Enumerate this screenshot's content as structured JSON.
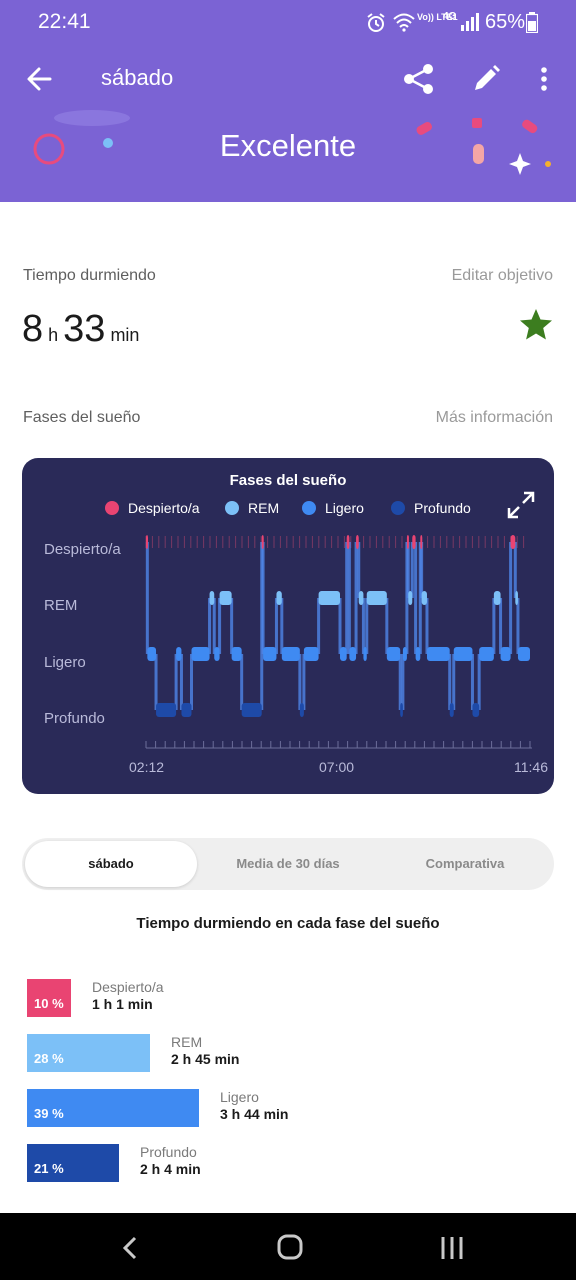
{
  "status_bar": {
    "time": "22:41",
    "network": "Vo)) LTE1",
    "net_type": "4G",
    "battery": "65%"
  },
  "app_bar": {
    "title": "sábado",
    "back_icon": "arrow-left-icon",
    "share_icon": "share-icon",
    "edit_icon": "pencil-icon",
    "more_icon": "more-vertical-icon"
  },
  "banner": {
    "rating": "Excelente"
  },
  "sleep_time": {
    "label": "Tiempo durmiendo",
    "edit_link": "Editar objetivo",
    "hours": "8",
    "hours_unit": "h",
    "minutes": "33",
    "minutes_unit": "min",
    "goal_icon": "star-icon"
  },
  "phases": {
    "label": "Fases del sueño",
    "more_link": "Más información"
  },
  "chart_data": {
    "type": "line",
    "title": "Fases del sueño",
    "legend": [
      {
        "name": "Despierto/a",
        "color": "#e94472"
      },
      {
        "name": "REM",
        "color": "#7cc0f7"
      },
      {
        "name": "Ligero",
        "color": "#3f8af2"
      },
      {
        "name": "Profundo",
        "color": "#1e4aa8"
      }
    ],
    "y_categories": [
      "Despierto/a",
      "REM",
      "Ligero",
      "Profundo"
    ],
    "x_ticks": [
      "02:12",
      "07:00",
      "11:46"
    ],
    "x_range": [
      "02:12",
      "11:46"
    ],
    "stage_colors": {
      "Despierto/a": "#e94472",
      "REM": "#7cc0f7",
      "Ligero": "#3f8af2",
      "Profundo": "#1e4aa8"
    },
    "segments": [
      {
        "start_min": 0,
        "end_min": 2,
        "stage": "Despierto/a"
      },
      {
        "start_min": 2,
        "end_min": 15,
        "stage": "Ligero"
      },
      {
        "start_min": 15,
        "end_min": 45,
        "stage": "Profundo"
      },
      {
        "start_min": 45,
        "end_min": 53,
        "stage": "Ligero"
      },
      {
        "start_min": 53,
        "end_min": 68,
        "stage": "Profundo"
      },
      {
        "start_min": 68,
        "end_min": 95,
        "stage": "Ligero"
      },
      {
        "start_min": 95,
        "end_min": 102,
        "stage": "REM"
      },
      {
        "start_min": 102,
        "end_min": 110,
        "stage": "Ligero"
      },
      {
        "start_min": 110,
        "end_min": 128,
        "stage": "REM"
      },
      {
        "start_min": 128,
        "end_min": 143,
        "stage": "Ligero"
      },
      {
        "start_min": 143,
        "end_min": 173,
        "stage": "Profundo"
      },
      {
        "start_min": 173,
        "end_min": 175,
        "stage": "Despierto/a"
      },
      {
        "start_min": 175,
        "end_min": 195,
        "stage": "Ligero"
      },
      {
        "start_min": 195,
        "end_min": 203,
        "stage": "REM"
      },
      {
        "start_min": 203,
        "end_min": 230,
        "stage": "Ligero"
      },
      {
        "start_min": 230,
        "end_min": 236,
        "stage": "Profundo"
      },
      {
        "start_min": 236,
        "end_min": 258,
        "stage": "Ligero"
      },
      {
        "start_min": 258,
        "end_min": 290,
        "stage": "REM"
      },
      {
        "start_min": 290,
        "end_min": 300,
        "stage": "Ligero"
      },
      {
        "start_min": 300,
        "end_min": 304,
        "stage": "Despierto/a"
      },
      {
        "start_min": 304,
        "end_min": 314,
        "stage": "Ligero"
      },
      {
        "start_min": 314,
        "end_min": 318,
        "stage": "Despierto/a"
      },
      {
        "start_min": 318,
        "end_min": 325,
        "stage": "REM"
      },
      {
        "start_min": 325,
        "end_min": 330,
        "stage": "Ligero"
      },
      {
        "start_min": 330,
        "end_min": 360,
        "stage": "REM"
      },
      {
        "start_min": 360,
        "end_min": 380,
        "stage": "Ligero"
      },
      {
        "start_min": 380,
        "end_min": 384,
        "stage": "Profundo"
      },
      {
        "start_min": 384,
        "end_min": 390,
        "stage": "Ligero"
      },
      {
        "start_min": 390,
        "end_min": 392,
        "stage": "Despierto/a"
      },
      {
        "start_min": 392,
        "end_min": 398,
        "stage": "REM"
      },
      {
        "start_min": 398,
        "end_min": 403,
        "stage": "Despierto/a"
      },
      {
        "start_min": 403,
        "end_min": 410,
        "stage": "Ligero"
      },
      {
        "start_min": 410,
        "end_min": 412,
        "stage": "Despierto/a"
      },
      {
        "start_min": 412,
        "end_min": 420,
        "stage": "REM"
      },
      {
        "start_min": 420,
        "end_min": 454,
        "stage": "Ligero"
      },
      {
        "start_min": 454,
        "end_min": 460,
        "stage": "Profundo"
      },
      {
        "start_min": 460,
        "end_min": 488,
        "stage": "Ligero"
      },
      {
        "start_min": 488,
        "end_min": 498,
        "stage": "Profundo"
      },
      {
        "start_min": 498,
        "end_min": 520,
        "stage": "Ligero"
      },
      {
        "start_min": 520,
        "end_min": 530,
        "stage": "REM"
      },
      {
        "start_min": 530,
        "end_min": 545,
        "stage": "Ligero"
      },
      {
        "start_min": 545,
        "end_min": 552,
        "stage": "Despierto/a"
      },
      {
        "start_min": 552,
        "end_min": 556,
        "stage": "REM"
      },
      {
        "start_min": 556,
        "end_min": 574,
        "stage": "Ligero"
      }
    ],
    "expand_icon": "expand-icon"
  },
  "tabs": [
    {
      "label": "sábado",
      "active": true
    },
    {
      "label": "Media de 30 días",
      "active": false
    },
    {
      "label": "Comparativa",
      "active": false
    }
  ],
  "breakdown": {
    "title": "Tiempo durmiendo en cada fase del sueño",
    "stages": [
      {
        "name": "Despierto/a",
        "percent": "10 %",
        "duration": "1 h 1 min",
        "color": "#e94472",
        "fraction": 0.1
      },
      {
        "name": "REM",
        "percent": "28 %",
        "duration": "2 h 45 min",
        "color": "#7cc0f7",
        "fraction": 0.28
      },
      {
        "name": "Ligero",
        "percent": "39 %",
        "duration": "3 h 44 min",
        "color": "#3f8af2",
        "fraction": 0.39
      },
      {
        "name": "Profundo",
        "percent": "21 %",
        "duration": "2 h 4 min",
        "color": "#1e4aa8",
        "fraction": 0.21
      }
    ]
  },
  "nav_bar": {
    "back_icon": "nav-back-icon",
    "home_icon": "nav-home-icon",
    "recents_icon": "nav-recents-icon"
  }
}
